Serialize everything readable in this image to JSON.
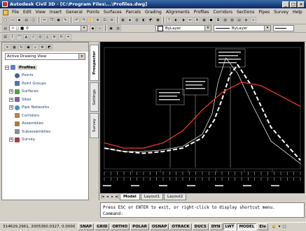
{
  "window": {
    "title": "Autodesk Civil 3D - [C:\\Program Files\\...\\Profiles.dwg]",
    "minimize": "_",
    "maximize": "□",
    "close": "×"
  },
  "menu": [
    "File",
    "Edit",
    "View",
    "Insert",
    "General",
    "Points",
    "Surfaces",
    "Parcels",
    "Grading",
    "Alignments",
    "Profiles",
    "Corridors",
    "Sections",
    "Pipes",
    "Survey",
    "Help"
  ],
  "layer": {
    "name": "0",
    "color": "ByLayer",
    "linetype": "ByLayer",
    "lineweight": "ByLayer"
  },
  "toolspace": {
    "view_selector": "Active Drawing View",
    "root": "Profiles",
    "nodes": [
      {
        "label": "Points",
        "icon": "points-icon",
        "expand": ""
      },
      {
        "label": "Point Groups",
        "icon": "point-groups-icon",
        "expand": ""
      },
      {
        "label": "Surfaces",
        "icon": "surfaces-icon",
        "expand": "+"
      },
      {
        "label": "Sites",
        "icon": "sites-icon",
        "expand": "+"
      },
      {
        "label": "Pipe Networks",
        "icon": "pipe-networks-icon",
        "expand": "+"
      },
      {
        "label": "Corridors",
        "icon": "corridors-icon",
        "expand": ""
      },
      {
        "label": "Assemblies",
        "icon": "assemblies-icon",
        "expand": ""
      },
      {
        "label": "Subassemblies",
        "icon": "subassemblies-icon",
        "expand": ""
      },
      {
        "label": "Survey",
        "icon": "survey-icon",
        "expand": "+"
      }
    ],
    "tabs": [
      "Prospector",
      "Settings",
      "Survey"
    ]
  },
  "layout_tabs": [
    "Model",
    "Layout1",
    "Layout2"
  ],
  "command": {
    "line1": "Press ESC or ENTER to exit, or right-click to display shortcut menu.",
    "line2": "Command:"
  },
  "status": {
    "coords": "314629.2961, 2005360.0327, 0.0000",
    "toggles": [
      {
        "label": "SNAP",
        "on": false
      },
      {
        "label": "GRID",
        "on": false
      },
      {
        "label": "ORTHO",
        "on": false
      },
      {
        "label": "POLAR",
        "on": false
      },
      {
        "label": "OSNAP",
        "on": false
      },
      {
        "label": "OTRACK",
        "on": false
      },
      {
        "label": "DUCS",
        "on": false
      },
      {
        "label": "DYN",
        "on": false
      },
      {
        "label": "LWT",
        "on": true
      },
      {
        "label": "MODEL",
        "on": true
      }
    ],
    "annot": "Ele"
  },
  "chart_data": {
    "type": "line",
    "axes": "none",
    "colors": {
      "background": "#000000",
      "ground": "#e03030",
      "design": "#ffffff",
      "grid": "#606060",
      "labels": "#d0d0d0"
    },
    "series": [
      {
        "x": [
          0,
          10,
          20,
          30,
          40,
          50,
          56,
          60,
          64,
          68,
          75,
          85,
          100
        ],
        "y": [
          12,
          10,
          9,
          10,
          12,
          18,
          28,
          40,
          54,
          60,
          48,
          24,
          5
        ]
      },
      {
        "x": [
          0,
          10,
          20,
          30,
          40,
          50,
          55,
          58,
          62,
          68,
          75,
          85,
          100
        ],
        "y": [
          12,
          10,
          10,
          11,
          13,
          20,
          32,
          50,
          64,
          55,
          38,
          16,
          3
        ]
      },
      {
        "x": [
          0,
          10,
          20,
          30,
          40,
          50,
          60,
          70,
          80,
          90,
          100
        ],
        "y": [
          15,
          12,
          12,
          15,
          22,
          34,
          44,
          50,
          48,
          42,
          36
        ]
      }
    ]
  }
}
